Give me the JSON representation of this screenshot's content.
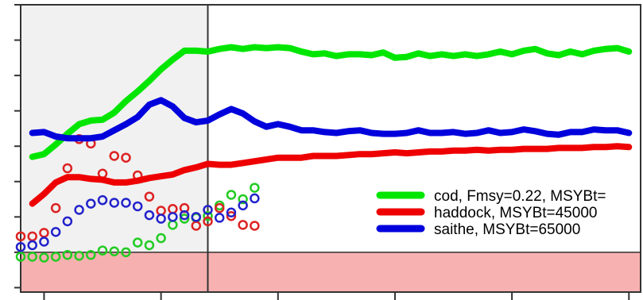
{
  "chart_data": {
    "type": "line",
    "xlim": [
      1975,
      2028
    ],
    "ylim": [
      -0.45,
      2.8
    ],
    "y_ticks": [
      -0.4,
      0.0,
      0.4,
      0.8,
      1.2,
      1.6,
      2.0,
      2.4,
      2.8
    ],
    "x_ticks": [
      1977,
      1987,
      1997,
      2007,
      2017,
      2027
    ],
    "grid": false,
    "legend": {
      "placement": "bottom-right"
    },
    "shaded_regions": [
      {
        "kind": "historical",
        "x_range": [
          1975,
          1991
        ],
        "y_range": [
          -0.45,
          2.8
        ],
        "color": "#f1f1f1"
      },
      {
        "kind": "below-zero",
        "x_range": [
          1975,
          2028
        ],
        "y_range": [
          -0.45,
          0.0
        ],
        "color": "#f7a9a9"
      }
    ],
    "divider_x": 1991,
    "series": [
      {
        "name": "cod, Fmsy=0.22, MSYBt=",
        "color": "#00e600",
        "x": [
          1976,
          1977,
          1978,
          1979,
          1980,
          1981,
          1982,
          1983,
          1984,
          1985,
          1986,
          1987,
          1988,
          1989,
          1990,
          1991,
          1992,
          1993,
          1994,
          1995,
          1996,
          1997,
          1998,
          1999,
          2000,
          2001,
          2002,
          2003,
          2004,
          2005,
          2006,
          2007,
          2008,
          2009,
          2010,
          2011,
          2012,
          2013,
          2014,
          2015,
          2016,
          2017,
          2018,
          2019,
          2020,
          2021,
          2022,
          2023,
          2024,
          2025,
          2026,
          2027
        ],
        "values": [
          1.08,
          1.11,
          1.22,
          1.34,
          1.45,
          1.49,
          1.5,
          1.58,
          1.71,
          1.82,
          1.94,
          2.07,
          2.18,
          2.28,
          2.28,
          2.27,
          2.3,
          2.32,
          2.3,
          2.32,
          2.31,
          2.32,
          2.31,
          2.27,
          2.24,
          2.25,
          2.22,
          2.24,
          2.24,
          2.23,
          2.26,
          2.2,
          2.21,
          2.25,
          2.22,
          2.24,
          2.22,
          2.24,
          2.22,
          2.24,
          2.27,
          2.24,
          2.28,
          2.3,
          2.25,
          2.23,
          2.27,
          2.24,
          2.28,
          2.3,
          2.31,
          2.27
        ]
      },
      {
        "name": "haddock, MSYBt=45000",
        "color": "#ee0000",
        "x": [
          1976,
          1977,
          1978,
          1979,
          1980,
          1981,
          1982,
          1983,
          1984,
          1985,
          1986,
          1987,
          1988,
          1989,
          1990,
          1991,
          1992,
          1993,
          1994,
          1995,
          1996,
          1997,
          1998,
          1999,
          2000,
          2001,
          2002,
          2003,
          2004,
          2005,
          2006,
          2007,
          2008,
          2009,
          2010,
          2011,
          2012,
          2013,
          2014,
          2015,
          2016,
          2017,
          2018,
          2019,
          2020,
          2021,
          2022,
          2023,
          2024,
          2025,
          2026,
          2027
        ],
        "values": [
          0.55,
          0.66,
          0.79,
          0.85,
          0.85,
          0.83,
          0.82,
          0.79,
          0.79,
          0.81,
          0.84,
          0.86,
          0.88,
          0.93,
          0.96,
          1.0,
          0.99,
          0.99,
          1.01,
          1.03,
          1.05,
          1.07,
          1.07,
          1.07,
          1.09,
          1.09,
          1.09,
          1.1,
          1.11,
          1.11,
          1.12,
          1.13,
          1.12,
          1.13,
          1.14,
          1.14,
          1.15,
          1.15,
          1.16,
          1.15,
          1.16,
          1.16,
          1.17,
          1.17,
          1.17,
          1.18,
          1.18,
          1.18,
          1.19,
          1.19,
          1.2,
          1.19
        ]
      },
      {
        "name": "saithe, MSYBt=65000",
        "color": "#0000dd",
        "x": [
          1976,
          1977,
          1978,
          1979,
          1980,
          1981,
          1982,
          1983,
          1984,
          1985,
          1986,
          1987,
          1988,
          1989,
          1990,
          1991,
          1992,
          1993,
          1994,
          1995,
          1996,
          1997,
          1998,
          1999,
          2000,
          2001,
          2002,
          2003,
          2004,
          2005,
          2006,
          2007,
          2008,
          2009,
          2010,
          2011,
          2012,
          2013,
          2014,
          2015,
          2016,
          2017,
          2018,
          2019,
          2020,
          2021,
          2022,
          2023,
          2024,
          2025,
          2026,
          2027
        ],
        "values": [
          1.35,
          1.36,
          1.31,
          1.29,
          1.29,
          1.29,
          1.31,
          1.38,
          1.45,
          1.53,
          1.67,
          1.72,
          1.65,
          1.52,
          1.47,
          1.49,
          1.56,
          1.62,
          1.57,
          1.48,
          1.42,
          1.45,
          1.42,
          1.38,
          1.38,
          1.36,
          1.35,
          1.37,
          1.38,
          1.35,
          1.34,
          1.34,
          1.35,
          1.38,
          1.35,
          1.35,
          1.36,
          1.34,
          1.35,
          1.38,
          1.35,
          1.36,
          1.39,
          1.37,
          1.34,
          1.33,
          1.36,
          1.36,
          1.39,
          1.38,
          1.38,
          1.35
        ]
      }
    ],
    "point_series": [
      {
        "series": "cod",
        "color": "#22cc22",
        "x": [
          1975,
          1976,
          1977,
          1978,
          1979,
          1980,
          1981,
          1982,
          1983,
          1984,
          1985,
          1986,
          1987,
          1988,
          1989,
          1990,
          1991,
          1992,
          1993,
          1994,
          1995
        ],
        "values": [
          -0.05,
          -0.05,
          -0.06,
          -0.05,
          -0.03,
          -0.04,
          -0.03,
          0.02,
          0.01,
          0.0,
          0.11,
          0.08,
          0.16,
          0.31,
          0.38,
          0.39,
          0.41,
          0.53,
          0.65,
          0.6,
          0.73
        ]
      },
      {
        "series": "haddock",
        "color": "#dd2222",
        "x": [
          1975,
          1976,
          1977,
          1978,
          1979,
          1980,
          1981,
          1982,
          1983,
          1984,
          1985,
          1986,
          1987,
          1988,
          1989,
          1990,
          1991,
          1992,
          1993,
          1994,
          1995
        ],
        "values": [
          0.18,
          0.18,
          0.22,
          0.5,
          0.95,
          1.28,
          1.23,
          0.89,
          1.09,
          1.07,
          0.87,
          0.63,
          0.47,
          0.49,
          0.5,
          0.3,
          0.35,
          0.5,
          0.41,
          0.31,
          0.3
        ]
      },
      {
        "series": "saithe",
        "color": "#2222cc",
        "x": [
          1975,
          1976,
          1977,
          1978,
          1979,
          1980,
          1981,
          1982,
          1983,
          1984,
          1985,
          1986,
          1987,
          1988,
          1989,
          1990,
          1991,
          1992,
          1993,
          1994,
          1995
        ],
        "values": [
          0.06,
          0.08,
          0.12,
          0.23,
          0.35,
          0.48,
          0.55,
          0.59,
          0.56,
          0.56,
          0.52,
          0.42,
          0.38,
          0.4,
          0.42,
          0.4,
          0.48,
          0.39,
          0.45,
          0.53,
          0.61
        ]
      }
    ]
  }
}
